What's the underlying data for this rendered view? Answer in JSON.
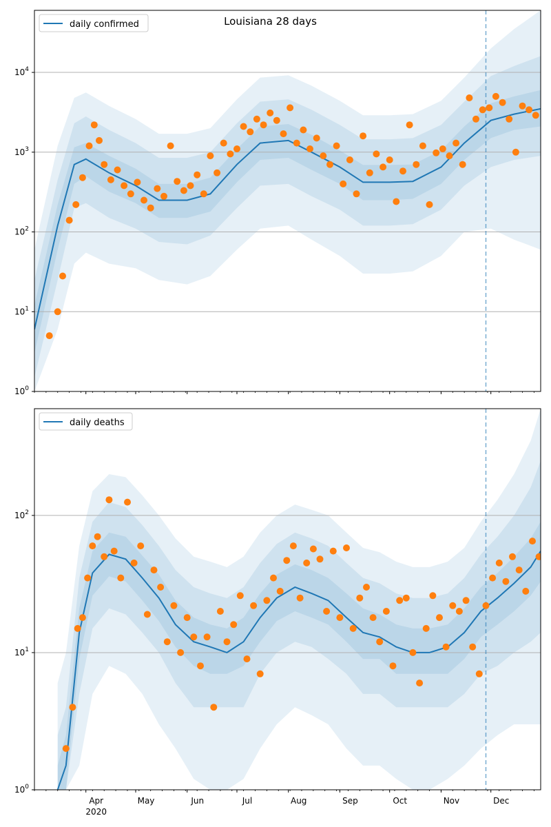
{
  "colors": {
    "line": "#1f77b4",
    "points": "#ff7f0e",
    "band": "#1f77b4",
    "grid": "#b0b0b0",
    "marker_line": "#1f77b4"
  },
  "chart_data": [
    {
      "type": "line",
      "title": "Louisiana 28 days",
      "xlabel": "",
      "ylabel": "",
      "yscale": "log",
      "ylim": [
        1,
        60000
      ],
      "xlim": [
        "2020-03-01",
        "2020-12-31"
      ],
      "x_ticks": [
        "Apr",
        "May",
        "Jun",
        "Jul",
        "Aug",
        "Sep",
        "Oct",
        "Nov",
        "Dec"
      ],
      "x_tick_sublabel": "2020",
      "y_ticks": [
        {
          "value": 1,
          "base": "10",
          "exp": "0"
        },
        {
          "value": 10,
          "base": "10",
          "exp": "1"
        },
        {
          "value": 100,
          "base": "10",
          "exp": "2"
        },
        {
          "value": 1000,
          "base": "10",
          "exp": "3"
        },
        {
          "value": 10000,
          "base": "10",
          "exp": "4"
        }
      ],
      "grid": "horizontal major",
      "legend": "top-left",
      "forecast_start": "2020-11-28",
      "series": [
        {
          "name": "daily confirmed",
          "type": "line",
          "x": [
            "2020-03-01",
            "2020-03-15",
            "2020-03-25",
            "2020-04-01",
            "2020-04-15",
            "2020-05-01",
            "2020-05-15",
            "2020-06-01",
            "2020-06-15",
            "2020-07-01",
            "2020-07-15",
            "2020-08-01",
            "2020-08-15",
            "2020-09-01",
            "2020-09-15",
            "2020-10-01",
            "2020-10-15",
            "2020-11-01",
            "2020-11-15",
            "2020-12-01",
            "2020-12-15",
            "2020-12-31"
          ],
          "values": [
            6,
            120,
            700,
            820,
            550,
            380,
            250,
            250,
            300,
            700,
            1300,
            1400,
            1000,
            650,
            420,
            420,
            430,
            650,
            1300,
            2500,
            3000,
            3500
          ],
          "band_inner": {
            "low": [
              3,
              60,
              400,
              500,
              320,
              230,
              150,
              150,
              180,
              420,
              800,
              850,
              600,
              400,
              250,
              250,
              260,
              400,
              800,
              1500,
              1900,
              2100
            ],
            "high": [
              12,
              220,
              1150,
              1300,
              900,
              620,
              400,
              400,
              480,
              1100,
              2100,
              2250,
              1650,
              1050,
              690,
              690,
              700,
              1050,
              2100,
              4100,
              5000,
              6000
            ]
          },
          "band_middle": {
            "low": [
              1.5,
              25,
              200,
              230,
              150,
              110,
              75,
              70,
              90,
              200,
              380,
              400,
              280,
              190,
              120,
              120,
              125,
              190,
              380,
              650,
              800,
              900
            ],
            "high": [
              25,
              450,
              2300,
              2800,
              1900,
              1300,
              850,
              850,
              1000,
              2300,
              4300,
              4600,
              3400,
              2200,
              1450,
              1450,
              1500,
              2200,
              4300,
              9000,
              12000,
              16000
            ]
          },
          "band_outer": {
            "low": [
              1,
              6,
              40,
              55,
              40,
              35,
              25,
              22,
              28,
              60,
              110,
              120,
              80,
              50,
              30,
              30,
              32,
              50,
              100,
              110,
              80,
              60
            ],
            "high": [
              60,
              1200,
              4800,
              5600,
              3800,
              2600,
              1700,
              1700,
              2000,
              4600,
              8600,
              9200,
              6800,
              4400,
              2900,
              2900,
              3000,
              4400,
              8600,
              20000,
              35000,
              60000
            ]
          }
        },
        {
          "name": "",
          "type": "scatter",
          "x": [
            "2020-03-10",
            "2020-03-15",
            "2020-03-18",
            "2020-03-22",
            "2020-03-26",
            "2020-03-30",
            "2020-04-03",
            "2020-04-06",
            "2020-04-09",
            "2020-04-12",
            "2020-04-16",
            "2020-04-20",
            "2020-04-24",
            "2020-04-28",
            "2020-05-02",
            "2020-05-06",
            "2020-05-10",
            "2020-05-14",
            "2020-05-18",
            "2020-05-22",
            "2020-05-26",
            "2020-05-30",
            "2020-06-03",
            "2020-06-07",
            "2020-06-11",
            "2020-06-15",
            "2020-06-19",
            "2020-06-23",
            "2020-06-27",
            "2020-07-01",
            "2020-07-05",
            "2020-07-09",
            "2020-07-13",
            "2020-07-17",
            "2020-07-21",
            "2020-07-25",
            "2020-07-29",
            "2020-08-02",
            "2020-08-06",
            "2020-08-10",
            "2020-08-14",
            "2020-08-18",
            "2020-08-22",
            "2020-08-26",
            "2020-08-30",
            "2020-09-03",
            "2020-09-07",
            "2020-09-11",
            "2020-09-15",
            "2020-09-19",
            "2020-09-23",
            "2020-09-27",
            "2020-10-01",
            "2020-10-05",
            "2020-10-09",
            "2020-10-13",
            "2020-10-17",
            "2020-10-21",
            "2020-10-25",
            "2020-10-29",
            "2020-11-02",
            "2020-11-06",
            "2020-11-10",
            "2020-11-14",
            "2020-11-18",
            "2020-11-22",
            "2020-11-26",
            "2020-11-30",
            "2020-12-04",
            "2020-12-08",
            "2020-12-12",
            "2020-12-16",
            "2020-12-20",
            "2020-12-24",
            "2020-12-28"
          ],
          "values": [
            5,
            10,
            28,
            140,
            220,
            480,
            1200,
            2200,
            1400,
            700,
            450,
            600,
            380,
            300,
            420,
            250,
            200,
            350,
            280,
            1200,
            430,
            330,
            380,
            520,
            300,
            900,
            550,
            1300,
            950,
            1100,
            2100,
            1800,
            2600,
            2200,
            3100,
            2500,
            1700,
            3600,
            1300,
            1900,
            1100,
            1500,
            900,
            700,
            1200,
            400,
            800,
            300,
            1600,
            550,
            950,
            650,
            800,
            240,
            580,
            2200,
            700,
            1200,
            220,
            980,
            1100,
            900,
            1300,
            700,
            4800,
            2600,
            3400,
            3600,
            5000,
            4200,
            2600,
            1000,
            3800,
            3400,
            2900
          ]
        }
      ]
    },
    {
      "type": "line",
      "title": "",
      "xlabel": "",
      "ylabel": "",
      "yscale": "log",
      "ylim": [
        1,
        600
      ],
      "xlim": [
        "2020-03-01",
        "2020-12-31"
      ],
      "x_ticks": [
        "Apr",
        "May",
        "Jun",
        "Jul",
        "Aug",
        "Sep",
        "Oct",
        "Nov",
        "Dec"
      ],
      "x_tick_sublabel": "2020",
      "y_ticks": [
        {
          "value": 1,
          "base": "10",
          "exp": "0"
        },
        {
          "value": 10,
          "base": "10",
          "exp": "1"
        },
        {
          "value": 100,
          "base": "10",
          "exp": "2"
        }
      ],
      "grid": "horizontal major",
      "legend": "top-left",
      "forecast_start": "2020-11-28",
      "series": [
        {
          "name": "daily deaths",
          "type": "line",
          "x": [
            "2020-03-15",
            "2020-03-20",
            "2020-03-28",
            "2020-04-05",
            "2020-04-15",
            "2020-04-25",
            "2020-05-05",
            "2020-05-15",
            "2020-05-25",
            "2020-06-05",
            "2020-06-15",
            "2020-06-25",
            "2020-07-05",
            "2020-07-15",
            "2020-07-25",
            "2020-08-05",
            "2020-08-15",
            "2020-08-25",
            "2020-09-05",
            "2020-09-15",
            "2020-09-25",
            "2020-10-05",
            "2020-10-15",
            "2020-10-25",
            "2020-11-05",
            "2020-11-15",
            "2020-11-25",
            "2020-12-05",
            "2020-12-15",
            "2020-12-25",
            "2020-12-31"
          ],
          "values": [
            1,
            1.5,
            14,
            38,
            52,
            48,
            35,
            25,
            16,
            12,
            11,
            10,
            12,
            18,
            25,
            30,
            27,
            24,
            18,
            14,
            13,
            11,
            10,
            10,
            11,
            14,
            20,
            25,
            32,
            42,
            55
          ],
          "band_inner": {
            "low": [
              1,
              1,
              9,
              26,
              36,
              33,
              24,
              17,
              11,
              8,
              7,
              7,
              8,
              12,
              17,
              20,
              18,
              16,
              12,
              9,
              9,
              7,
              7,
              7,
              7,
              9,
              13,
              16,
              20,
              26,
              33
            ],
            "high": [
              1.5,
              2.5,
              21,
              55,
              75,
              70,
              51,
              37,
              24,
              18,
              16,
              15,
              18,
              27,
              37,
              44,
              40,
              35,
              27,
              21,
              19,
              16,
              15,
              15,
              16,
              21,
              30,
              38,
              50,
              68,
              90
            ]
          },
          "band_middle": {
            "low": [
              1,
              1,
              5,
              15,
              21,
              19,
              14,
              10,
              6,
              4,
              4,
              4,
              4,
              7,
              10,
              12,
              11,
              9,
              7,
              5,
              5,
              4,
              4,
              4,
              4,
              5,
              7,
              8,
              10,
              12,
              14
            ],
            "high": [
              2.5,
              4,
              35,
              90,
              125,
              115,
              85,
              60,
              40,
              30,
              27,
              25,
              30,
              45,
              62,
              75,
              68,
              60,
              45,
              35,
              32,
              27,
              25,
              25,
              27,
              35,
              52,
              70,
              100,
              160,
              250
            ]
          },
          "band_outer": {
            "low": [
              1,
              1,
              1.5,
              5,
              8,
              7,
              5,
              3,
              2,
              1.2,
              1,
              1,
              1.2,
              2,
              3,
              4,
              3.5,
              3,
              2,
              1.5,
              1.5,
              1.2,
              1,
              1,
              1.2,
              1.5,
              2,
              2.5,
              3,
              3,
              3
            ],
            "high": [
              6,
              10,
              60,
              150,
              200,
              190,
              140,
              100,
              68,
              50,
              46,
              42,
              50,
              75,
              100,
              120,
              110,
              100,
              75,
              58,
              54,
              46,
              42,
              42,
              46,
              58,
              90,
              130,
              200,
              350,
              600
            ]
          }
        },
        {
          "name": "",
          "type": "scatter",
          "x": [
            "2020-03-20",
            "2020-03-24",
            "2020-03-27",
            "2020-03-30",
            "2020-04-02",
            "2020-04-05",
            "2020-04-08",
            "2020-04-12",
            "2020-04-15",
            "2020-04-18",
            "2020-04-22",
            "2020-04-26",
            "2020-04-30",
            "2020-05-04",
            "2020-05-08",
            "2020-05-12",
            "2020-05-16",
            "2020-05-20",
            "2020-05-24",
            "2020-05-28",
            "2020-06-01",
            "2020-06-05",
            "2020-06-09",
            "2020-06-13",
            "2020-06-17",
            "2020-06-21",
            "2020-06-25",
            "2020-06-29",
            "2020-07-03",
            "2020-07-07",
            "2020-07-11",
            "2020-07-15",
            "2020-07-19",
            "2020-07-23",
            "2020-07-27",
            "2020-07-31",
            "2020-08-04",
            "2020-08-08",
            "2020-08-12",
            "2020-08-16",
            "2020-08-20",
            "2020-08-24",
            "2020-08-28",
            "2020-09-01",
            "2020-09-05",
            "2020-09-09",
            "2020-09-13",
            "2020-09-17",
            "2020-09-21",
            "2020-09-25",
            "2020-09-29",
            "2020-10-03",
            "2020-10-07",
            "2020-10-11",
            "2020-10-15",
            "2020-10-19",
            "2020-10-23",
            "2020-10-27",
            "2020-10-31",
            "2020-11-04",
            "2020-11-08",
            "2020-11-12",
            "2020-11-16",
            "2020-11-20",
            "2020-11-24",
            "2020-11-28",
            "2020-12-02",
            "2020-12-06",
            "2020-12-10",
            "2020-12-14",
            "2020-12-18",
            "2020-12-22",
            "2020-12-26",
            "2020-12-30"
          ],
          "values": [
            2,
            4,
            15,
            18,
            35,
            60,
            70,
            50,
            130,
            55,
            35,
            125,
            45,
            60,
            19,
            40,
            30,
            12,
            22,
            10,
            18,
            13,
            8,
            13,
            4,
            20,
            12,
            16,
            26,
            9,
            22,
            7,
            24,
            35,
            28,
            47,
            60,
            25,
            45,
            57,
            48,
            20,
            55,
            18,
            58,
            15,
            25,
            30,
            18,
            12,
            20,
            8,
            24,
            25,
            10,
            6,
            15,
            26,
            18,
            11,
            22,
            20,
            24,
            11,
            7,
            22,
            35,
            45,
            33,
            50,
            40,
            28,
            65,
            50
          ]
        }
      ]
    }
  ]
}
